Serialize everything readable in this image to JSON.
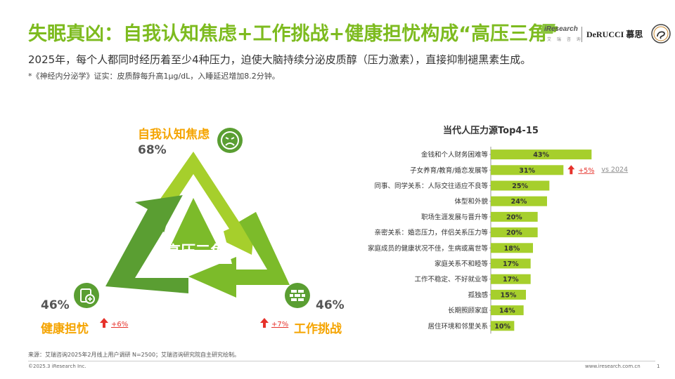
{
  "header": {
    "title": "失眠真凶：自我认知焦虑+工作挑战+健康担忧构成“高压三角”",
    "subtitle": "2025年，每个人都同时经历着至少4种压力，迫使大脑持续分泌皮质醇（压力激素），直接抑制褪黑素生成。",
    "footnote": "*《神经内分泌学》证实：皮质醇每升高1μg/dL，入睡延迟增加8.2分钟。"
  },
  "logos": {
    "iresearch": "iResearch",
    "iresearch_sub": "艾 瑞 咨 询",
    "derucci": "DeRUCCI 慕思"
  },
  "triangle": {
    "center": "高压三角",
    "top": {
      "label": "自我认知焦虑",
      "pct": "68%",
      "icon": "worried-face-icon"
    },
    "left": {
      "label": "健康担忧",
      "pct": "46%",
      "change": "+6%",
      "icon": "health-shield-icon"
    },
    "right": {
      "label": "工作挑战",
      "pct": "46%",
      "change": "+7%",
      "icon": "brick-wall-icon"
    },
    "colors": {
      "light": "#a6cf2c",
      "mid": "#7cbb2a",
      "dark": "#5a9e32",
      "accent": "#f5a400",
      "up": "#e6322b"
    }
  },
  "chart_data": {
    "type": "bar",
    "orientation": "horizontal",
    "title": "当代人压力源Top4-15",
    "categories": [
      "金钱和个人财务困难等",
      "子女养育/教育/婚恋发展等",
      "同事、同学关系：人际交往适应不良等",
      "体型和外貌",
      "职场生涯发展与晋升等",
      "亲密关系：婚恋压力，伴侣关系压力等",
      "家庭成员的健康状况不佳，生病或离世等",
      "家庭关系不和睦等",
      "工作不稳定、不好就业等",
      "孤独感",
      "长期照顾家庭",
      "居住环境和邻里关系"
    ],
    "values": [
      43,
      31,
      25,
      24,
      20,
      20,
      18,
      17,
      17,
      15,
      14,
      10
    ],
    "value_labels": [
      "43%",
      "31%",
      "25%",
      "24%",
      "20%",
      "20%",
      "18%",
      "17%",
      "17%",
      "15%",
      "14%",
      "10%"
    ],
    "annotation": {
      "category_index": 1,
      "change": "+5%",
      "compare": "vs 2024"
    },
    "bar_color": "#a6cf2c",
    "xlim": [
      0,
      45
    ]
  },
  "footer": {
    "source": "来源：艾瑞咨询2025年2月线上用户调研 N=2500；艾瑞咨询研究院自主研究绘制。",
    "copyright": "©2025.3 iResearch Inc.",
    "website": "www.iresearch.com.cn",
    "page": "1"
  }
}
